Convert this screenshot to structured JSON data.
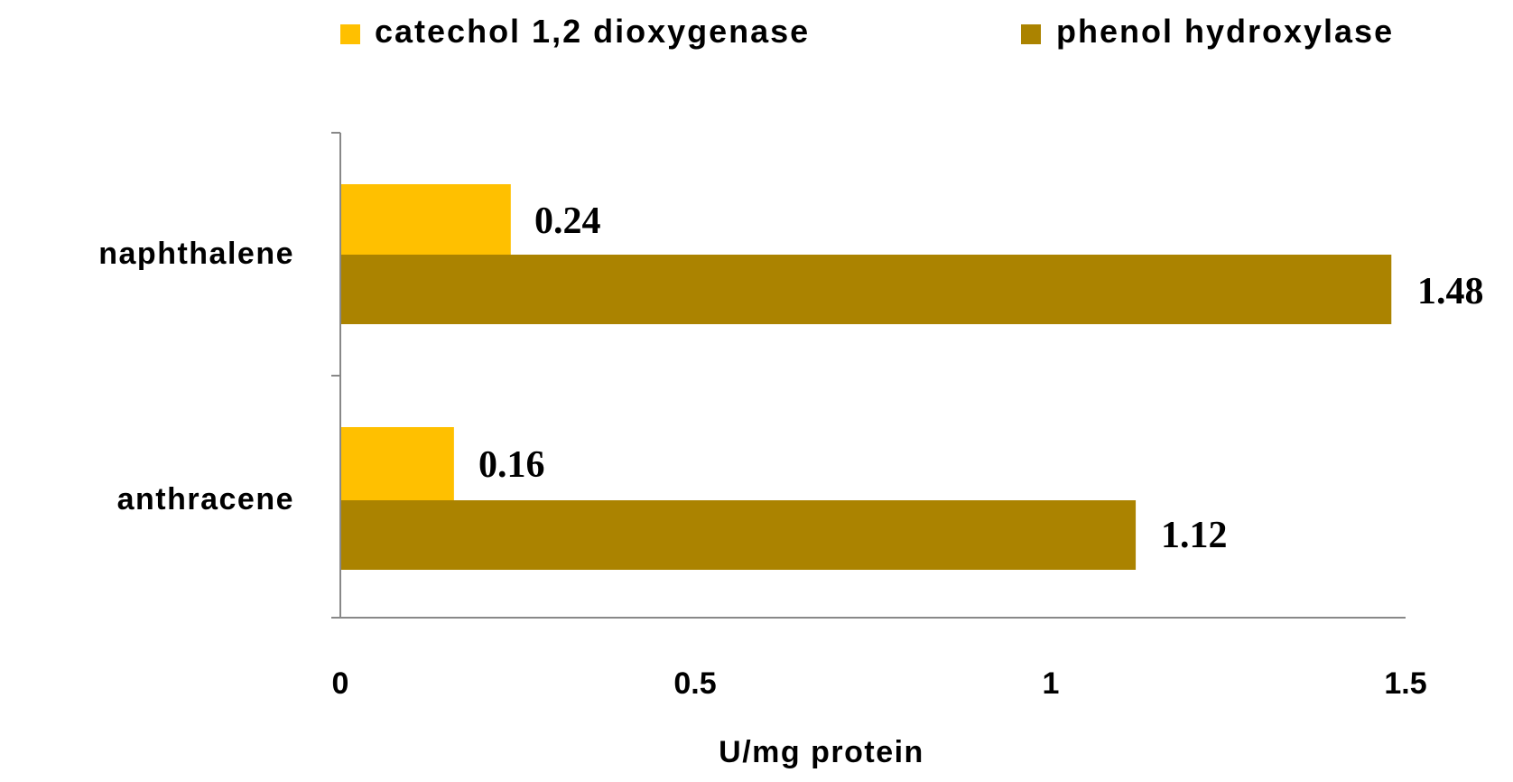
{
  "chart_data": {
    "type": "bar",
    "orientation": "horizontal",
    "categories": [
      "naphthalene",
      "anthracene"
    ],
    "series": [
      {
        "name": "catechol 1,2 dioxygenase",
        "color": "#FFC000",
        "values": [
          0.24,
          0.16
        ],
        "labels": [
          "0.24",
          "0.16"
        ]
      },
      {
        "name": "phenol hydroxylase",
        "color": "#AB8300",
        "values": [
          1.48,
          1.12
        ],
        "labels": [
          "1.48",
          "1.12"
        ]
      }
    ],
    "xlabel": "U/mg protein",
    "ylabel": "",
    "xlim": [
      0,
      1.5
    ],
    "xticks": [
      0,
      0.5,
      1,
      1.5
    ],
    "xtick_labels": [
      "0",
      "0.5",
      "1",
      "1.5"
    ],
    "grid": false,
    "legend_position": "top"
  }
}
